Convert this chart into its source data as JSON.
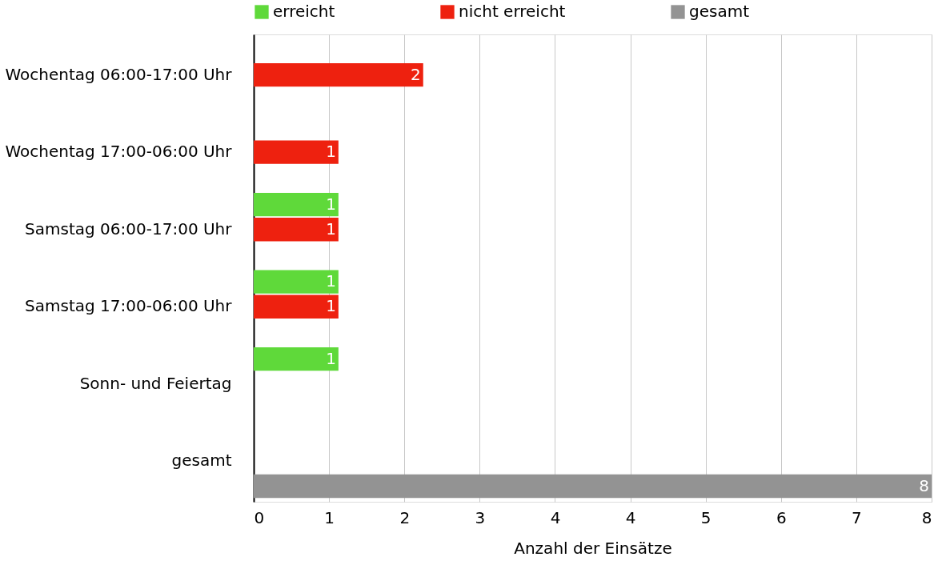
{
  "chart_data": {
    "type": "bar",
    "orientation": "horizontal",
    "xlabel": "Anzahl der Einsätze",
    "categories": [
      "Wochentag 06:00-17:00 Uhr",
      "Wochentag 17:00-06:00 Uhr",
      "Samstag 06:00-17:00 Uhr",
      "Samstag 17:00-06:00 Uhr",
      "Sonn- und Feiertag",
      "gesamt"
    ],
    "series": [
      {
        "name": "erreicht",
        "color": "#5fd93a",
        "values": [
          null,
          null,
          1,
          1,
          1,
          null
        ]
      },
      {
        "name": "nicht erreicht",
        "color": "#ee210f",
        "values": [
          2,
          1,
          1,
          1,
          null,
          null
        ]
      },
      {
        "name": "gesamt",
        "color": "#939393",
        "values": [
          null,
          null,
          null,
          null,
          null,
          8
        ]
      }
    ],
    "xlim": [
      0,
      8
    ],
    "xticks": [
      0,
      {
        "value": 0.889,
        "label": "1"
      },
      {
        "value": 1.778,
        "label": "2"
      },
      {
        "value": 2.667,
        "label": "3"
      },
      {
        "value": 3.556,
        "label": "4"
      },
      {
        "value": 4.444,
        "label": "4"
      },
      {
        "value": 5.333,
        "label": "5"
      },
      {
        "value": 6.222,
        "label": "6"
      },
      {
        "value": 7.111,
        "label": "7"
      },
      8
    ],
    "grid": "x",
    "legend": "top",
    "data_labels": true
  }
}
